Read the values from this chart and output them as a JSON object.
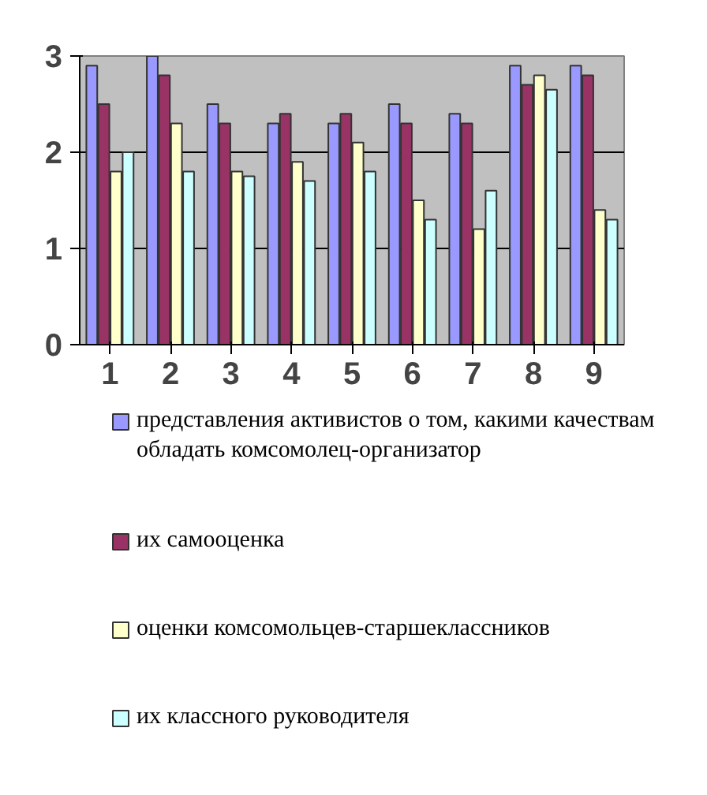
{
  "chart_data": {
    "type": "bar",
    "categories": [
      "1",
      "2",
      "3",
      "4",
      "5",
      "6",
      "7",
      "8",
      "9"
    ],
    "series": [
      {
        "name": "представления активистов о том, какими качествам обладать комсомолец-организатор",
        "color": "#9999ff",
        "values": [
          2.9,
          3.0,
          2.5,
          2.3,
          2.3,
          2.5,
          2.4,
          2.9,
          2.9
        ]
      },
      {
        "name": "их самооценка",
        "color": "#993366",
        "values": [
          2.5,
          2.8,
          2.3,
          2.4,
          2.4,
          2.3,
          2.3,
          2.7,
          2.8
        ]
      },
      {
        "name": "оценки комсомольцев-старшеклассников",
        "color": "#ffffcc",
        "values": [
          1.8,
          2.3,
          1.8,
          1.9,
          2.1,
          1.5,
          1.2,
          2.8,
          1.4
        ]
      },
      {
        "name": "их классного руководителя",
        "color": "#ccffff",
        "values": [
          2.0,
          1.8,
          1.75,
          1.7,
          1.8,
          1.3,
          1.6,
          2.65,
          1.3
        ]
      }
    ],
    "ylim": [
      0,
      3
    ],
    "yticks": [
      0,
      1,
      2,
      3
    ],
    "grid": "y",
    "legend": "bottom"
  }
}
